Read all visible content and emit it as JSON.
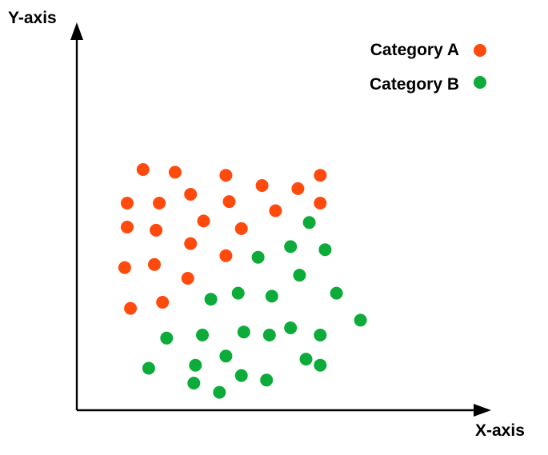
{
  "chart_data": {
    "type": "scatter",
    "title": "",
    "xlabel": "X-axis",
    "ylabel": "Y-axis",
    "xlim": [
      0,
      100
    ],
    "ylim": [
      0,
      100
    ],
    "grid": false,
    "ticks": false,
    "legend_position": "top-right",
    "series": [
      {
        "name": "Category A",
        "color": "#ff4a0d",
        "points": [
          [
            16.3,
            63.1
          ],
          [
            24.2,
            62.4
          ],
          [
            36.7,
            61.6
          ],
          [
            45.6,
            58.9
          ],
          [
            54.4,
            58.1
          ],
          [
            59.9,
            61.6
          ],
          [
            28.0,
            56.6
          ],
          [
            12.4,
            54.3
          ],
          [
            20.3,
            54.3
          ],
          [
            37.5,
            54.7
          ],
          [
            48.9,
            52.3
          ],
          [
            59.9,
            54.3
          ],
          [
            12.4,
            48.0
          ],
          [
            19.5,
            47.2
          ],
          [
            31.2,
            49.6
          ],
          [
            40.5,
            47.6
          ],
          [
            28.0,
            43.7
          ],
          [
            11.8,
            37.4
          ],
          [
            19.1,
            38.2
          ],
          [
            36.7,
            40.5
          ],
          [
            27.3,
            34.6
          ],
          [
            13.2,
            26.7
          ],
          [
            21.1,
            28.3
          ]
        ]
      },
      {
        "name": "Category B",
        "color": "#0dab3a",
        "points": [
          [
            57.2,
            49.2
          ],
          [
            52.6,
            42.9
          ],
          [
            61.1,
            42.1
          ],
          [
            44.6,
            40.1
          ],
          [
            54.8,
            35.4
          ],
          [
            33.0,
            29.1
          ],
          [
            39.7,
            30.7
          ],
          [
            48.0,
            29.9
          ],
          [
            63.9,
            30.7
          ],
          [
            69.8,
            23.6
          ],
          [
            22.1,
            18.9
          ],
          [
            30.9,
            19.7
          ],
          [
            41.1,
            20.5
          ],
          [
            47.4,
            19.7
          ],
          [
            52.6,
            21.6
          ],
          [
            59.9,
            19.7
          ],
          [
            36.7,
            14.2
          ],
          [
            29.2,
            11.8
          ],
          [
            17.7,
            11.0
          ],
          [
            56.4,
            13.4
          ],
          [
            59.9,
            11.8
          ],
          [
            40.5,
            9.1
          ],
          [
            46.7,
            7.9
          ],
          [
            28.8,
            7.1
          ],
          [
            35.1,
            4.7
          ]
        ]
      }
    ]
  }
}
